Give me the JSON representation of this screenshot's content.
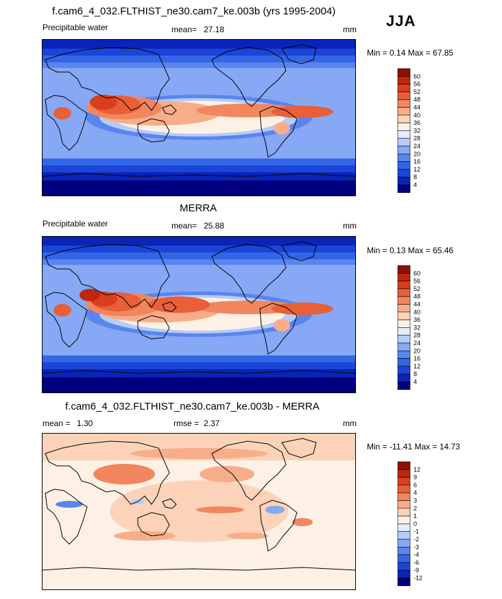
{
  "season": "JJA",
  "colors": {
    "pw_levels": [
      "#00007f",
      "#0a24b8",
      "#1a45d8",
      "#3366e6",
      "#5a85ee",
      "#86a8f5",
      "#b5ccf9",
      "#e3edfd",
      "#fdf1e6",
      "#fcd3b8",
      "#f8ad89",
      "#f2865e",
      "#e85f38",
      "#d93e1d",
      "#c0260c",
      "#8e0f03"
    ],
    "diff_levels": [
      "#00007f",
      "#0a24b8",
      "#1a45d8",
      "#3366e6",
      "#5a85ee",
      "#86a8f5",
      "#b5ccf9",
      "#e3edfd",
      "#fdf1e6",
      "#fcd3b8",
      "#f8ad89",
      "#f2865e",
      "#e85f38",
      "#d93e1d",
      "#c0260c",
      "#8e0f03"
    ]
  },
  "panels": [
    {
      "title": "f.cam6_4_032.FLTHIST_ne30.cam7_ke.003b (yrs 1995-2004)",
      "variable": "Precipitable water",
      "stat_label": "mean=",
      "stat_value": "27.18",
      "units": "mm",
      "minmax": "Min =   0.14 Max =  67.85"
    },
    {
      "title": "MERRA",
      "variable": "Precipitable water",
      "stat_label": "mean=",
      "stat_value": "25.88",
      "units": "mm",
      "minmax": "Min =   0.13 Max =  65.46"
    },
    {
      "title": "f.cam6_4_032.FLTHIST_ne30.cam7_ke.003b - MERRA",
      "stat1_label": "mean =",
      "stat1_value": "1.30",
      "stat2_label": "rmse =",
      "stat2_value": "2.37",
      "units": "mm",
      "minmax": "Min = -11.41 Max =  14.73"
    }
  ],
  "chart_data": [
    {
      "type": "heatmap",
      "title": "f.cam6_4_032.FLTHIST_ne30.cam7_ke.003b (yrs 1995-2004)",
      "subtitle": "Precipitable water",
      "units": "mm",
      "mean": 27.18,
      "min": 0.14,
      "max": 67.85,
      "colorbar_levels": [
        "60",
        "56",
        "52",
        "48",
        "44",
        "40",
        "36",
        "32",
        "28",
        "24",
        "20",
        "16",
        "12",
        "8",
        "4"
      ]
    },
    {
      "type": "heatmap",
      "title": "MERRA",
      "subtitle": "Precipitable water",
      "units": "mm",
      "mean": 25.88,
      "min": 0.13,
      "max": 65.46,
      "colorbar_levels": [
        "60",
        "56",
        "52",
        "48",
        "44",
        "40",
        "36",
        "32",
        "28",
        "24",
        "20",
        "16",
        "12",
        "8",
        "4"
      ]
    },
    {
      "type": "heatmap",
      "title": "f.cam6_4_032.FLTHIST_ne30.cam7_ke.003b - MERRA",
      "units": "mm",
      "mean": 1.3,
      "rmse": 2.37,
      "min": -11.41,
      "max": 14.73,
      "colorbar_levels": [
        "12",
        "9",
        "6",
        "4",
        "3",
        "2",
        "1",
        "0",
        "-1",
        "-2",
        "-3",
        "-4",
        "-6",
        "-9",
        "-12"
      ]
    }
  ]
}
